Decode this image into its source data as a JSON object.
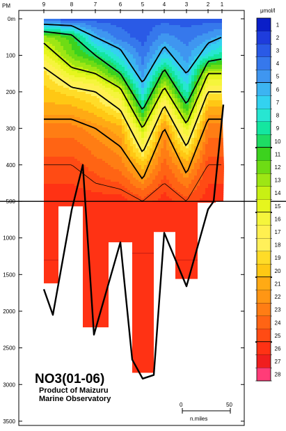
{
  "chart_data": {
    "type": "heatmap",
    "title": "NO3(01-06)",
    "subtitle": "Product of Maizuru Marine Observatory",
    "unit_label": "μmol/l",
    "x_axis_label": "PM",
    "stations": [
      "9",
      "8",
      "7",
      "6",
      "5",
      "4",
      "3",
      "2",
      "1"
    ],
    "depth_ticks": [
      "0m",
      "100",
      "200",
      "300",
      "400",
      "500",
      "1000",
      "1500",
      "2000",
      "2500",
      "3000",
      "3500"
    ],
    "scale_bar": {
      "start": "0",
      "end": "50",
      "unit": "n.miles"
    },
    "colorbar": {
      "labels": [
        "1",
        "2",
        "3",
        "4",
        "5",
        "6",
        "7",
        "8",
        "9",
        "10",
        "11",
        "12",
        "13",
        "14",
        "15",
        "16",
        "17",
        "18",
        "19",
        "20",
        "21",
        "22",
        "23",
        "24",
        "25",
        "26",
        "27",
        "28"
      ],
      "colors": [
        "#0a1ec8",
        "#1e3cdc",
        "#2a5ae6",
        "#3678ec",
        "#3f96f0",
        "#3cb4f2",
        "#33d2f0",
        "#27e6d2",
        "#14e6a0",
        "#1edc64",
        "#3cd21e",
        "#6edc14",
        "#9ee614",
        "#c8f014",
        "#e6f51e",
        "#f5f53c",
        "#fff050",
        "#fff05a",
        "#ffdc28",
        "#ffc814",
        "#ffaa14",
        "#ff9614",
        "#ff7d14",
        "#ff6414",
        "#ff4b14",
        "#ff3214",
        "#f01e1e",
        "#ff3c78"
      ]
    },
    "profiles": [
      {
        "station": "9",
        "values": [
          3,
          13,
          16,
          19,
          20,
          21,
          23,
          25,
          26
        ]
      },
      {
        "station": "8",
        "values": [
          3,
          11,
          12,
          15,
          19,
          21,
          23,
          25,
          26
        ]
      },
      {
        "station": "7",
        "values": [
          3,
          6,
          10,
          14,
          18,
          20,
          22,
          24,
          26
        ]
      },
      {
        "station": "6",
        "values": [
          3,
          4,
          7,
          10,
          15,
          18,
          21,
          23,
          26
        ]
      },
      {
        "station": "5",
        "values": [
          3,
          3,
          4,
          5,
          7,
          10,
          14,
          20,
          25
        ]
      },
      {
        "station": "4",
        "values": [
          3,
          5,
          7,
          11,
          15,
          19,
          22,
          24,
          26
        ]
      },
      {
        "station": "3",
        "values": [
          3,
          4,
          5,
          6,
          8,
          11,
          15,
          21,
          25
        ]
      },
      {
        "station": "2",
        "values": [
          3,
          5,
          8,
          14,
          18,
          21,
          23,
          25,
          26
        ]
      },
      {
        "station": "1",
        "values": [
          3,
          6,
          9,
          14,
          18,
          21,
          23,
          25,
          26
        ]
      }
    ],
    "profile_depths": [
      0,
      50,
      100,
      150,
      200,
      250,
      300,
      400,
      500
    ]
  }
}
